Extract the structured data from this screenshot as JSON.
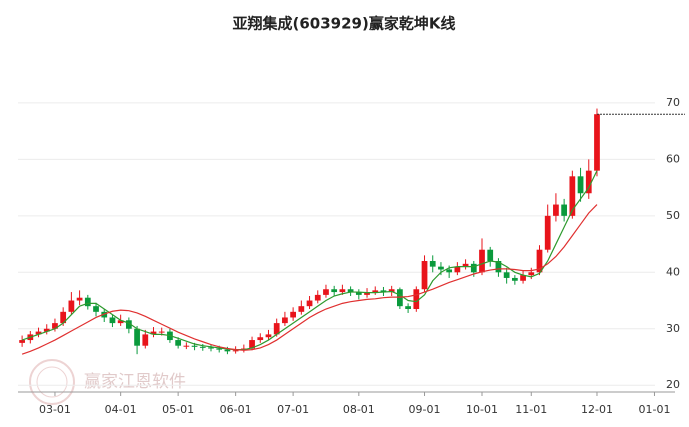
{
  "chart_data": {
    "type": "candlestick",
    "title": "亚翔集成(603929)赢家乾坤K线",
    "watermark": "赢家江恩软件",
    "categories": [
      null,
      null,
      null,
      null,
      "03-01",
      null,
      null,
      null,
      null,
      null,
      null,
      null,
      "04-01",
      null,
      null,
      null,
      null,
      null,
      null,
      "05-01",
      null,
      null,
      null,
      null,
      null,
      null,
      "06-01",
      null,
      null,
      null,
      null,
      null,
      null,
      "07-01",
      null,
      null,
      null,
      null,
      null,
      null,
      null,
      "08-01",
      null,
      null,
      null,
      null,
      null,
      null,
      null,
      "09-01",
      null,
      null,
      null,
      null,
      null,
      null,
      "10-01",
      null,
      null,
      null,
      null,
      null,
      "11-01",
      null,
      null,
      null,
      null,
      null,
      null,
      null,
      "12-01",
      null,
      null,
      null,
      null,
      null,
      null,
      "01-01",
      null,
      null
    ],
    "open": [
      27.5,
      28,
      29,
      29.5,
      30,
      31,
      33,
      35,
      35.5,
      34,
      33,
      32,
      31,
      31.5,
      30,
      27,
      29,
      29.5,
      29.5,
      28,
      27,
      27,
      26.8,
      26.7,
      26.5,
      26.3,
      26,
      26.2,
      26.5,
      28,
      28.5,
      29,
      31,
      32,
      33,
      34,
      35,
      36,
      37,
      36.5,
      37,
      36.5,
      36,
      36.5,
      36.8,
      36.5,
      37,
      34,
      33.5,
      37,
      42,
      41,
      40.5,
      40,
      41,
      41.5,
      40,
      44,
      42,
      40,
      39,
      38.5,
      39.5,
      40,
      44,
      50,
      52,
      50,
      57,
      54,
      58,
      null,
      null,
      null,
      null,
      null,
      null,
      null,
      null,
      null
    ],
    "high": [
      28.8,
      29.6,
      30.2,
      30.8,
      31.8,
      33.8,
      36.5,
      36.8,
      36,
      34.6,
      33.5,
      32.5,
      32.5,
      32,
      30.5,
      29.8,
      30.3,
      30.2,
      30,
      28.5,
      27.6,
      27.5,
      27.3,
      27.2,
      27,
      26.8,
      26.9,
      27.2,
      28.6,
      29.2,
      29.8,
      31.8,
      33,
      33.8,
      35,
      35.8,
      36.8,
      37.8,
      37.6,
      37.8,
      37.5,
      37,
      37.2,
      37.5,
      37.4,
      37.6,
      37.3,
      34.5,
      37.5,
      43,
      43,
      41.8,
      41.2,
      41.8,
      42.3,
      42,
      46,
      44.5,
      42.5,
      40.8,
      39.5,
      40.3,
      40.8,
      44.8,
      52,
      54,
      53,
      58,
      58.5,
      60,
      69,
      null,
      null,
      null,
      null,
      null,
      null,
      null,
      null,
      null
    ],
    "low": [
      26.8,
      27.4,
      28.5,
      29,
      29.5,
      30.5,
      32.5,
      34.2,
      33.4,
      32.2,
      31.2,
      30.3,
      30.5,
      29.2,
      25.5,
      26.5,
      28.5,
      28.8,
      27.5,
      26.5,
      26.4,
      26.2,
      26.1,
      26,
      25.8,
      25.5,
      25.6,
      25.8,
      26.2,
      27.5,
      28,
      28.6,
      30.5,
      31.4,
      32.5,
      33.5,
      34.5,
      35.5,
      35.8,
      36,
      35.8,
      35.2,
      35.5,
      36,
      35.8,
      35.8,
      33.5,
      32.8,
      33,
      36.5,
      40,
      39.5,
      39,
      39.5,
      40.5,
      39.2,
      39.5,
      41,
      39.2,
      38,
      37.8,
      38,
      38.8,
      39.5,
      43.5,
      49,
      49,
      49.5,
      52.5,
      53,
      57,
      null,
      null,
      null,
      null,
      null,
      null,
      null,
      null,
      null
    ],
    "close": [
      28,
      29,
      29.5,
      30,
      31,
      33,
      35,
      35.5,
      34,
      33,
      32,
      31,
      31.5,
      30,
      27,
      29,
      29.5,
      29.5,
      28,
      27,
      27,
      26.8,
      26.7,
      26.5,
      26.3,
      26,
      26.2,
      26.5,
      28,
      28.5,
      29,
      31,
      32,
      33,
      34,
      35,
      36,
      37,
      36.5,
      37,
      36.5,
      36,
      36.5,
      36.8,
      36.5,
      37,
      34,
      33.5,
      37,
      42,
      41,
      40.5,
      40,
      41,
      41.5,
      40,
      44,
      42,
      40,
      39,
      38.5,
      39.5,
      40,
      44,
      50,
      52,
      50,
      57,
      54,
      58,
      68,
      null,
      null,
      null,
      null,
      null,
      null,
      null,
      null,
      null
    ],
    "up_color": "#e8141b",
    "down_color": "#0a9a3c",
    "ma_lines": [
      {
        "color": "#2e9a2e",
        "values": [
          28,
          28.5,
          29,
          29.5,
          30,
          31,
          32.5,
          34,
          34.5,
          34.5,
          33.5,
          32.5,
          31.5,
          31,
          30,
          29.5,
          29,
          29,
          28.8,
          28.3,
          27.8,
          27.3,
          27,
          26.8,
          26.6,
          26.4,
          26.3,
          26.3,
          26.6,
          27.2,
          28,
          29,
          30,
          31,
          32,
          33,
          34,
          35,
          35.8,
          36.2,
          36.5,
          36.5,
          36.4,
          36.4,
          36.5,
          36.6,
          36,
          35,
          34.8,
          36,
          38.5,
          40,
          40.8,
          41,
          41,
          41,
          41.5,
          42,
          41.8,
          41,
          40,
          39.5,
          39.2,
          39.8,
          42,
          45,
          48,
          51,
          53,
          55,
          58,
          null,
          null,
          null,
          null,
          null,
          null,
          null,
          null,
          null
        ]
      },
      {
        "color": "#e03030",
        "values": [
          25.5,
          26,
          26.6,
          27.3,
          28,
          28.8,
          29.6,
          30.4,
          31.2,
          32,
          32.6,
          33.1,
          33.3,
          33.2,
          32.8,
          32.2,
          31.5,
          30.8,
          30.1,
          29.4,
          28.8,
          28.2,
          27.7,
          27.2,
          26.8,
          26.5,
          26.3,
          26.2,
          26.3,
          26.6,
          27.2,
          28,
          29,
          30,
          31,
          32,
          32.8,
          33.5,
          34,
          34.5,
          34.8,
          35,
          35.2,
          35.3,
          35.5,
          35.6,
          35.6,
          35.7,
          36,
          36.5,
          37,
          37.6,
          38.2,
          38.7,
          39.2,
          39.7,
          40.1,
          40.4,
          40.6,
          40.6,
          40.5,
          40.3,
          40.3,
          40.6,
          41.5,
          42.8,
          44.5,
          46.5,
          48.5,
          50.5,
          52,
          null,
          null,
          null,
          null,
          null,
          null,
          null,
          null,
          null
        ]
      }
    ],
    "ylim": [
      18.8,
      77.6
    ],
    "yticks": [
      20,
      30,
      40,
      50,
      60,
      70
    ],
    "grid": true
  }
}
